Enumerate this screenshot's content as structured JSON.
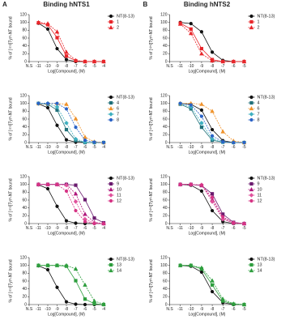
{
  "chart_data": [
    {
      "type": "line",
      "panel": "A",
      "title": "Binding hNTS1",
      "y_label": "% of [¹²⁵I]Tyr³-NT bound",
      "x_label": "Log[Compound], (M)",
      "xlim": [
        -12,
        -4
      ],
      "xticks": [
        {
          "value": -12,
          "label": "N.S"
        },
        -11,
        -10,
        -9,
        -8,
        -7,
        -6,
        -5,
        -4
      ],
      "ylim": [
        0,
        120
      ],
      "yticks": [
        0,
        20,
        40,
        60,
        80,
        100,
        120
      ],
      "x": [
        -11,
        -10,
        -9,
        -8,
        -7,
        -6,
        -5,
        -4
      ],
      "series": [
        {
          "name": "NT(8-13)",
          "color": "#111111",
          "marker": "circle",
          "dashed": false,
          "values": [
            98,
            83,
            33,
            5,
            0,
            0,
            0,
            0
          ]
        },
        {
          "name": "1",
          "color": "#e8262b",
          "marker": "square",
          "dashed": false,
          "values": [
            99,
            94,
            61,
            14,
            2,
            0,
            0,
            0
          ]
        },
        {
          "name": "2",
          "color": "#e8262b",
          "marker": "triangle",
          "dashed": true,
          "values": [
            100,
            97,
            76,
            24,
            3,
            0,
            0,
            0
          ]
        }
      ]
    },
    {
      "type": "line",
      "panel": "B",
      "title": "Binding hNTS2",
      "y_label": "% of [¹²⁵I]Tyr³-NT bound",
      "x_label": "Log[Compound], (M)",
      "xlim": [
        -12,
        -5
      ],
      "xticks": [
        {
          "value": -12,
          "label": "N.S"
        },
        -11,
        -10,
        -9,
        -8,
        -7,
        -6,
        -5
      ],
      "ylim": [
        0,
        120
      ],
      "yticks": [
        0,
        20,
        40,
        60,
        80,
        100,
        120
      ],
      "x": [
        -11,
        -10,
        -9,
        -8,
        -7,
        -6,
        -5
      ],
      "series": [
        {
          "name": "NT(8-13)",
          "color": "#111111",
          "marker": "circle",
          "dashed": false,
          "values": [
            100,
            97,
            76,
            24,
            3,
            0,
            0
          ]
        },
        {
          "name": "1",
          "color": "#e8262b",
          "marker": "square",
          "dashed": false,
          "values": [
            98,
            83,
            33,
            5,
            0,
            0,
            0
          ]
        },
        {
          "name": "2",
          "color": "#e8262b",
          "marker": "triangle",
          "dashed": true,
          "values": [
            96,
            72,
            20,
            2,
            0,
            0,
            0
          ]
        }
      ]
    },
    {
      "type": "line",
      "y_label": "% of [¹²⁵I]Tyr³-NT bound",
      "x_label": "Log[Compound], (M)",
      "xlim": [
        -12,
        -4
      ],
      "xticks": [
        {
          "value": -12,
          "label": "N.S"
        },
        -11,
        -10,
        -9,
        -8,
        -7,
        -6,
        -5,
        -4
      ],
      "ylim": [
        0,
        120
      ],
      "yticks": [
        0,
        20,
        40,
        60,
        80,
        100,
        120
      ],
      "x": [
        -11,
        -10,
        -9,
        -8,
        -7,
        -6,
        -5,
        -4
      ],
      "series": [
        {
          "name": "NT(8-13)",
          "color": "#111111",
          "marker": "circle",
          "dashed": false,
          "values": [
            99,
            89,
            44,
            7,
            1,
            0,
            0,
            0
          ]
        },
        {
          "name": "4",
          "color": "#1f6f78",
          "marker": "square",
          "dashed": false,
          "values": [
            100,
            98,
            83,
            33,
            5,
            0,
            0,
            0
          ]
        },
        {
          "name": "6",
          "color": "#f0932b",
          "marker": "triangle",
          "dashed": true,
          "values": [
            100,
            100,
            100,
            98,
            61,
            14,
            2,
            0
          ]
        },
        {
          "name": "7",
          "color": "#3fb0c0",
          "marker": "diamond",
          "dashed": true,
          "values": [
            100,
            100,
            91,
            50,
            9,
            1,
            0,
            0
          ]
        },
        {
          "name": "8",
          "color": "#2b63c6",
          "marker": "circle",
          "dashed": true,
          "values": [
            100,
            100,
            100,
            86,
            39,
            6,
            1,
            0
          ]
        }
      ]
    },
    {
      "type": "line",
      "y_label": "% of [¹²⁵I]Tyr³-NT bound",
      "x_label": "Log[Compound], (M)",
      "xlim": [
        -12,
        -5
      ],
      "xticks": [
        {
          "value": -12,
          "label": "N.S"
        },
        -11,
        -10,
        -9,
        -8,
        -7,
        -6,
        -5
      ],
      "ylim": [
        0,
        120
      ],
      "yticks": [
        0,
        20,
        40,
        60,
        80,
        100,
        120
      ],
      "x": [
        -11,
        -10,
        -9,
        -8,
        -7,
        -6,
        -5
      ],
      "series": [
        {
          "name": "NT(8-13)",
          "color": "#111111",
          "marker": "circle",
          "dashed": false,
          "values": [
            100,
            98,
            83,
            33,
            5,
            0,
            0
          ]
        },
        {
          "name": "4",
          "color": "#1f6f78",
          "marker": "square",
          "dashed": false,
          "values": [
            98,
            86,
            39,
            6,
            1,
            0,
            0
          ]
        },
        {
          "name": "6",
          "color": "#f0932b",
          "marker": "triangle",
          "dashed": true,
          "values": [
            100,
            100,
            98,
            80,
            28,
            4,
            0
          ]
        },
        {
          "name": "7",
          "color": "#3fb0c0",
          "marker": "diamond",
          "dashed": true,
          "values": [
            99,
            91,
            50,
            9,
            1,
            0,
            0
          ]
        },
        {
          "name": "8",
          "color": "#2b63c6",
          "marker": "circle",
          "dashed": true,
          "values": [
            100,
            96,
            67,
            17,
            2,
            0,
            0
          ]
        }
      ]
    },
    {
      "type": "line",
      "y_label": "% of [¹²⁵I]Tyr³-NT bound",
      "x_label": "Log[Compound], (M)",
      "xlim": [
        -12,
        -4
      ],
      "xticks": [
        {
          "value": -12,
          "label": "N.S"
        },
        -11,
        -10,
        -9,
        -8,
        -7,
        -6,
        -5,
        -4
      ],
      "ylim": [
        0,
        120
      ],
      "yticks": [
        0,
        20,
        40,
        60,
        80,
        100,
        120
      ],
      "x": [
        -11,
        -10,
        -9,
        -8,
        -7,
        -6,
        -5,
        -4
      ],
      "series": [
        {
          "name": "NT(8-13)",
          "color": "#111111",
          "marker": "circle",
          "dashed": false,
          "values": [
            99,
            89,
            44,
            7,
            1,
            0,
            0,
            0
          ]
        },
        {
          "name": "9",
          "color": "#6a1b6e",
          "marker": "square",
          "dashed": false,
          "values": [
            100,
            100,
            100,
            100,
            98,
            61,
            14,
            2
          ]
        },
        {
          "name": "10",
          "color": "#b0177d",
          "marker": "triangle",
          "dashed": true,
          "values": [
            100,
            100,
            100,
            100,
            76,
            24,
            3,
            0
          ]
        },
        {
          "name": "11",
          "color": "#e0529c",
          "marker": "diamond",
          "dashed": true,
          "values": [
            100,
            100,
            100,
            98,
            56,
            11,
            1,
            0
          ]
        },
        {
          "name": "12",
          "color": "#d63384",
          "marker": "circle",
          "dashed": true,
          "values": [
            100,
            100,
            100,
            83,
            33,
            5,
            0,
            0
          ]
        }
      ]
    },
    {
      "type": "line",
      "y_label": "% of [¹²⁵I]Tyr³-NT bound",
      "x_label": "Log[Compound], (M)",
      "xlim": [
        -12,
        -5
      ],
      "xticks": [
        {
          "value": -12,
          "label": "N.S"
        },
        -11,
        -10,
        -9,
        -8,
        -7,
        -6,
        -5
      ],
      "ylim": [
        0,
        120
      ],
      "yticks": [
        0,
        20,
        40,
        60,
        80,
        100,
        120
      ],
      "x": [
        -11,
        -10,
        -9,
        -8,
        -7,
        -6,
        -5
      ],
      "series": [
        {
          "name": "NT(8-13)",
          "color": "#111111",
          "marker": "circle",
          "dashed": false,
          "values": [
            100,
            98,
            83,
            33,
            5,
            0,
            0
          ]
        },
        {
          "name": "9",
          "color": "#6a1b6e",
          "marker": "square",
          "dashed": false,
          "values": [
            100,
            100,
            97,
            76,
            24,
            3,
            0
          ]
        },
        {
          "name": "10",
          "color": "#b0177d",
          "marker": "triangle",
          "dashed": true,
          "values": [
            100,
            100,
            98,
            61,
            14,
            2,
            0
          ]
        },
        {
          "name": "11",
          "color": "#e0529c",
          "marker": "diamond",
          "dashed": true,
          "values": [
            100,
            100,
            99,
            56,
            11,
            1,
            0
          ]
        },
        {
          "name": "12",
          "color": "#d63384",
          "marker": "circle",
          "dashed": true,
          "values": [
            100,
            100,
            98,
            67,
            17,
            2,
            0
          ]
        }
      ]
    },
    {
      "type": "line",
      "y_label": "% of [¹²⁵I]Tyr³-NT bound",
      "x_label": "Log[Compound], (M)",
      "xlim": [
        -12,
        -4
      ],
      "xticks": [
        {
          "value": -12,
          "label": "N.S"
        },
        -11,
        -10,
        -9,
        -8,
        -7,
        -6,
        -5,
        -4
      ],
      "ylim": [
        0,
        120
      ],
      "yticks": [
        0,
        20,
        40,
        60,
        80,
        100,
        120
      ],
      "x": [
        -11,
        -10,
        -9,
        -8,
        -7,
        -6,
        -5,
        -4
      ],
      "series": [
        {
          "name": "NT(8-13)",
          "color": "#111111",
          "marker": "circle",
          "dashed": false,
          "values": [
            99,
            89,
            44,
            7,
            1,
            0,
            0,
            0
          ]
        },
        {
          "name": "13",
          "color": "#2e9e3e",
          "marker": "square",
          "dashed": false,
          "values": [
            100,
            100,
            100,
            98,
            61,
            14,
            2,
            0
          ]
        },
        {
          "name": "14",
          "color": "#2e9e3e",
          "marker": "triangle",
          "dashed": true,
          "values": [
            100,
            100,
            100,
            100,
            91,
            50,
            9,
            1
          ]
        }
      ]
    },
    {
      "type": "line",
      "y_label": "% of [¹²⁵I]Tyr³-NT bound",
      "x_label": "Log[Compound], (M)",
      "xlim": [
        -12,
        -5
      ],
      "xticks": [
        {
          "value": -12,
          "label": "N.S"
        },
        -11,
        -10,
        -9,
        -8,
        -7,
        -6,
        -5
      ],
      "ylim": [
        0,
        120
      ],
      "yticks": [
        0,
        20,
        40,
        60,
        80,
        100,
        120
      ],
      "x": [
        -11,
        -10,
        -9,
        -8,
        -7,
        -6,
        -5
      ],
      "series": [
        {
          "name": "NT(8-13)",
          "color": "#111111",
          "marker": "circle",
          "dashed": false,
          "values": [
            100,
            98,
            83,
            33,
            5,
            0,
            0
          ]
        },
        {
          "name": "13",
          "color": "#2e9e3e",
          "marker": "square",
          "dashed": false,
          "values": [
            100,
            100,
            91,
            50,
            9,
            1,
            0
          ]
        },
        {
          "name": "14",
          "color": "#2e9e3e",
          "marker": "triangle",
          "dashed": true,
          "values": [
            100,
            100,
            94,
            61,
            14,
            2,
            0
          ]
        }
      ]
    }
  ]
}
